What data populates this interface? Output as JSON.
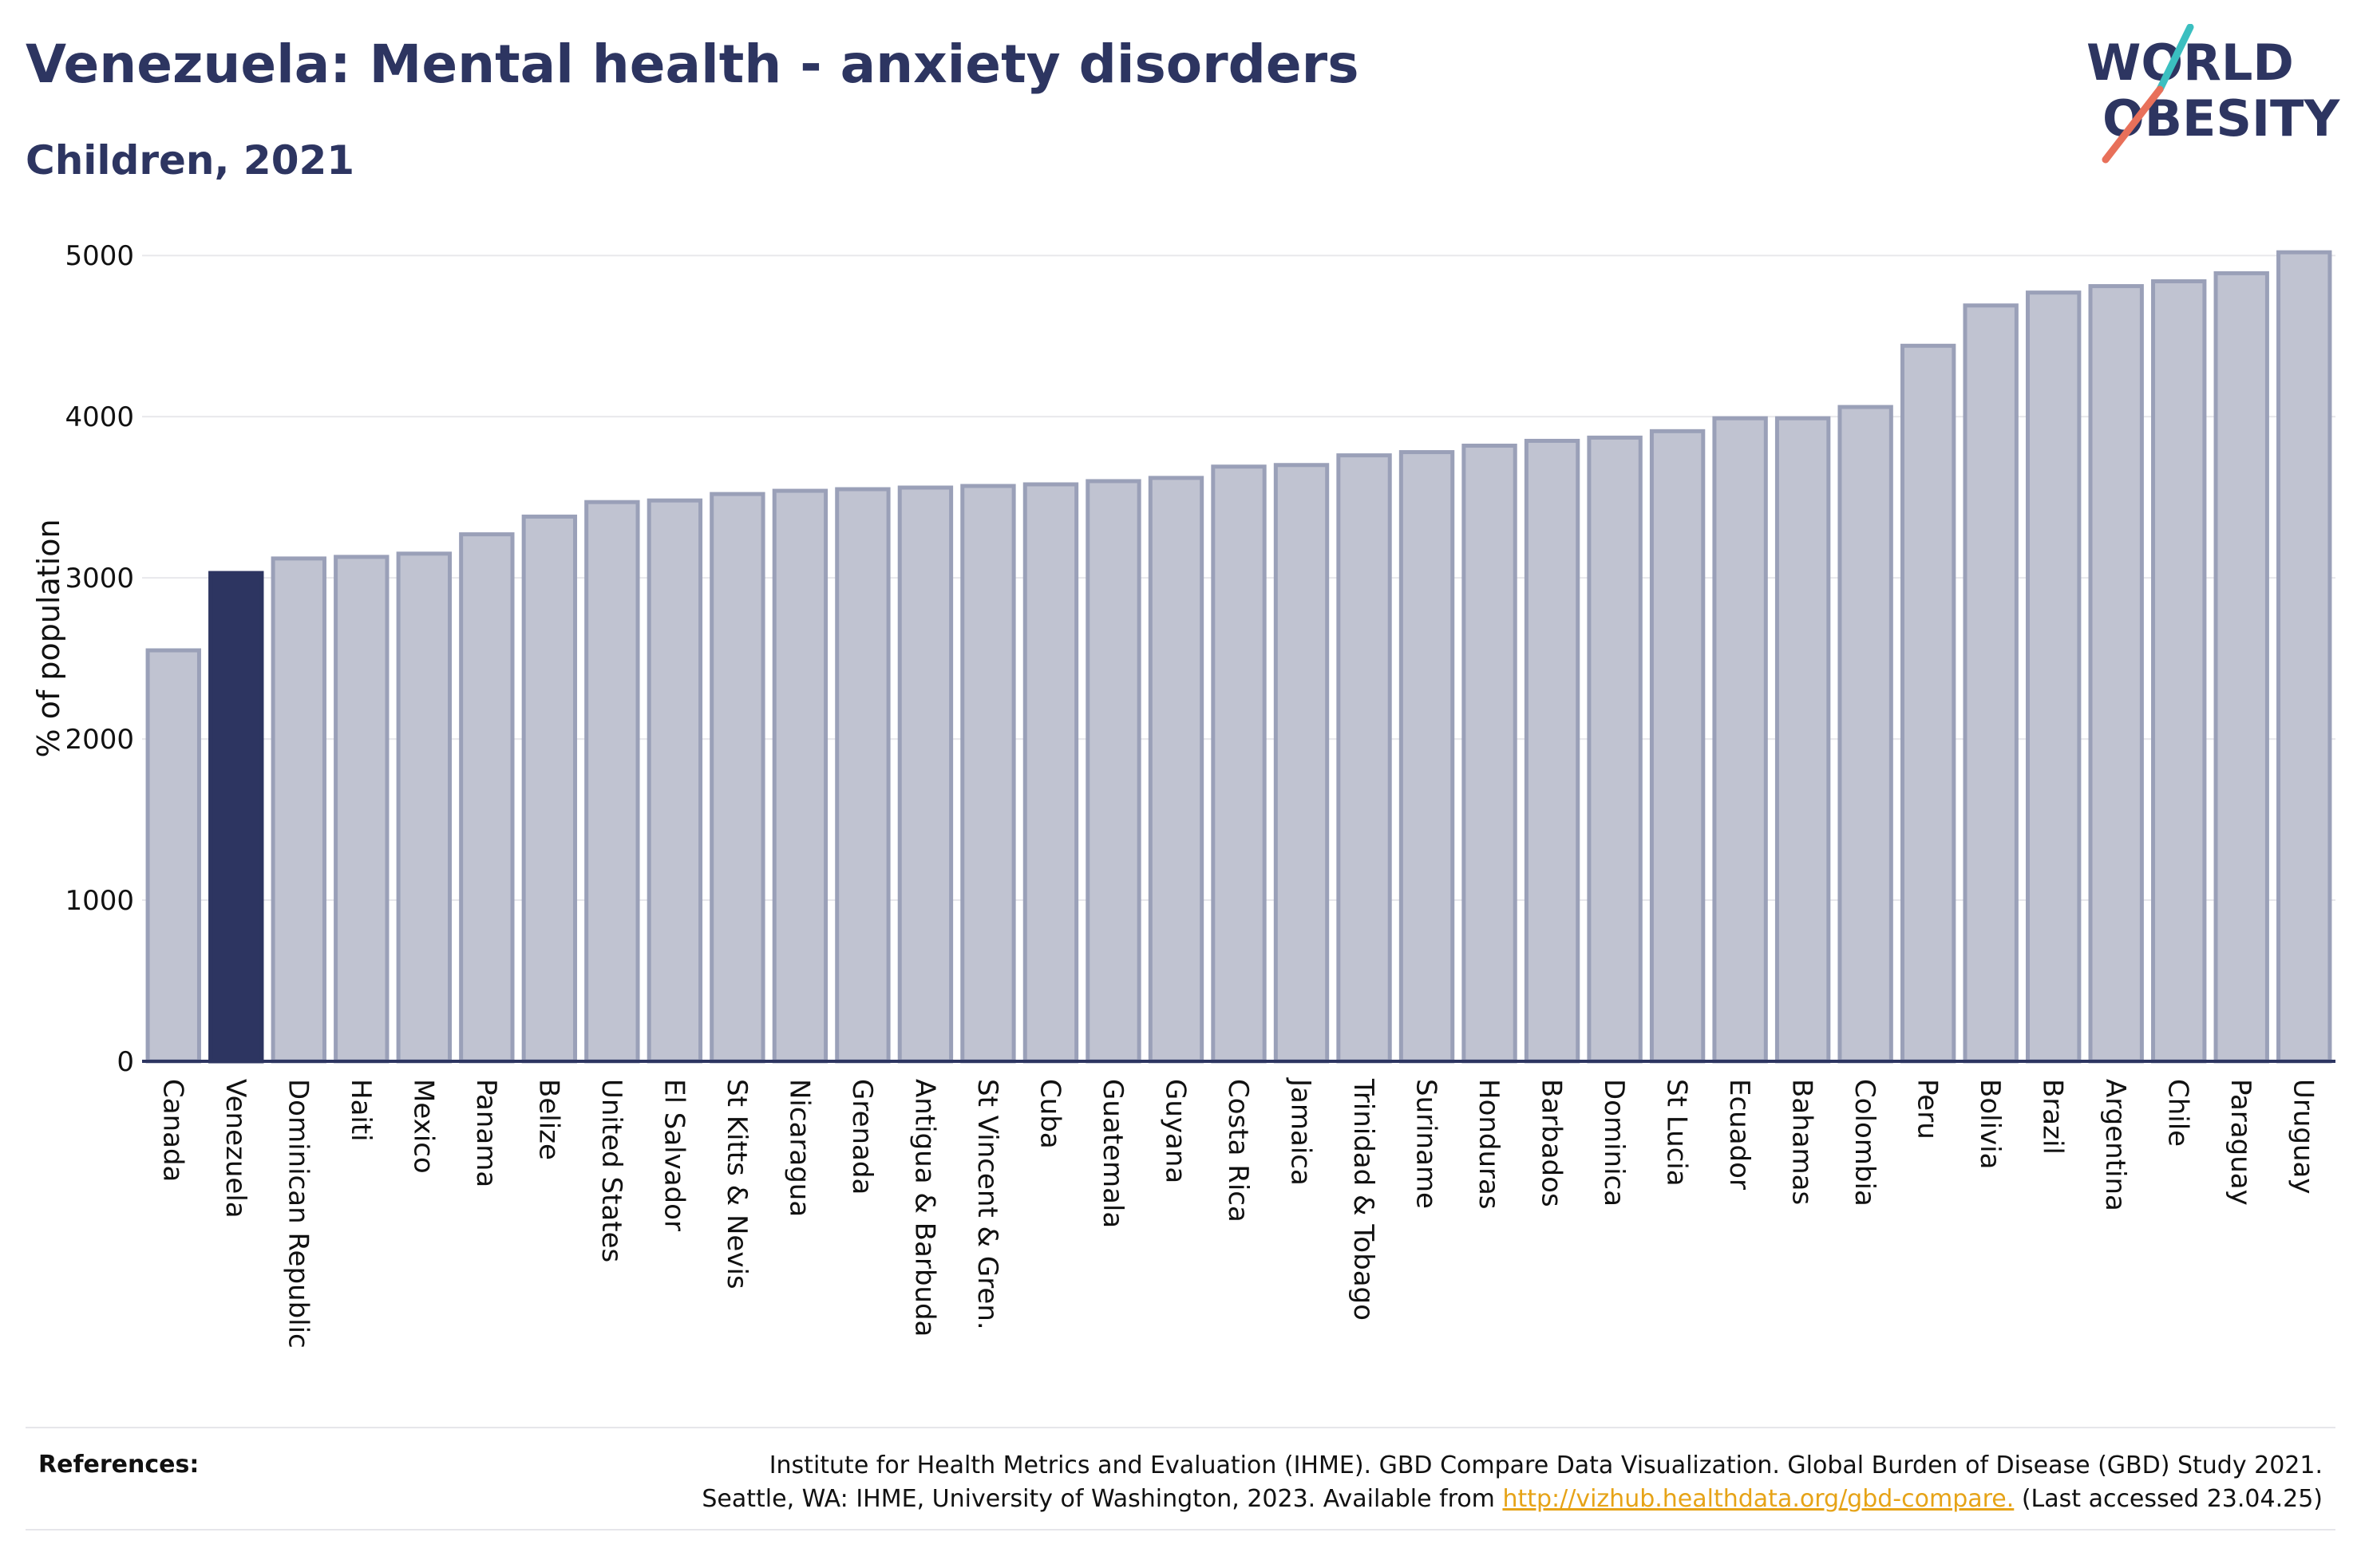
{
  "header": {
    "title": "Venezuela: Mental health - anxiety disorders",
    "subtitle": "Children, 2021"
  },
  "logo": {
    "line1": "WORLD",
    "line2": "OBESITY"
  },
  "chart_data": {
    "type": "bar",
    "title": "Venezuela: Mental health - anxiety disorders",
    "subtitle": "Children, 2021",
    "ylabel": "% of population",
    "xlabel": "",
    "ylim": [
      0,
      5100
    ],
    "yticks": [
      0,
      1000,
      2000,
      3000,
      4000,
      5000
    ],
    "grid": true,
    "highlight": "Venezuela",
    "colors": {
      "bar": "#c0c3d1",
      "bar_border": "#9aa0b8",
      "highlight": "#2d3561",
      "grid": "#e8e8ec",
      "axis": "#2d3561"
    },
    "categories": [
      "Canada",
      "Venezuela",
      "Dominican Republic",
      "Haiti",
      "Mexico",
      "Panama",
      "Belize",
      "United States",
      "El Salvador",
      "St Kitts & Nevis",
      "Nicaragua",
      "Grenada",
      "Antigua & Barbuda",
      "St Vincent & Gren.",
      "Cuba",
      "Guatemala",
      "Guyana",
      "Costa Rica",
      "Jamaica",
      "Trinidad & Tobago",
      "Suriname",
      "Honduras",
      "Barbados",
      "Dominica",
      "St Lucia",
      "Ecuador",
      "Bahamas",
      "Colombia",
      "Peru",
      "Bolivia",
      "Brazil",
      "Argentina",
      "Chile",
      "Paraguay",
      "Uruguay"
    ],
    "values": [
      2550,
      3030,
      3120,
      3130,
      3150,
      3270,
      3380,
      3470,
      3480,
      3520,
      3540,
      3550,
      3560,
      3570,
      3580,
      3600,
      3620,
      3690,
      3700,
      3760,
      3780,
      3820,
      3850,
      3870,
      3910,
      3990,
      3990,
      4060,
      4440,
      4690,
      4770,
      4810,
      4840,
      4890,
      5020
    ]
  },
  "references": {
    "label": "References:",
    "line1": "Institute for Health Metrics and Evaluation (IHME). GBD Compare Data Visualization. Global Burden of Disease (GBD) Study 2021.",
    "line2_prefix": "Seattle, WA: IHME, University of Washington, 2023. Available from ",
    "link": "http://vizhub.healthdata.org/gbd-compare.",
    "line2_suffix": " (Last accessed 23.04.25)"
  }
}
